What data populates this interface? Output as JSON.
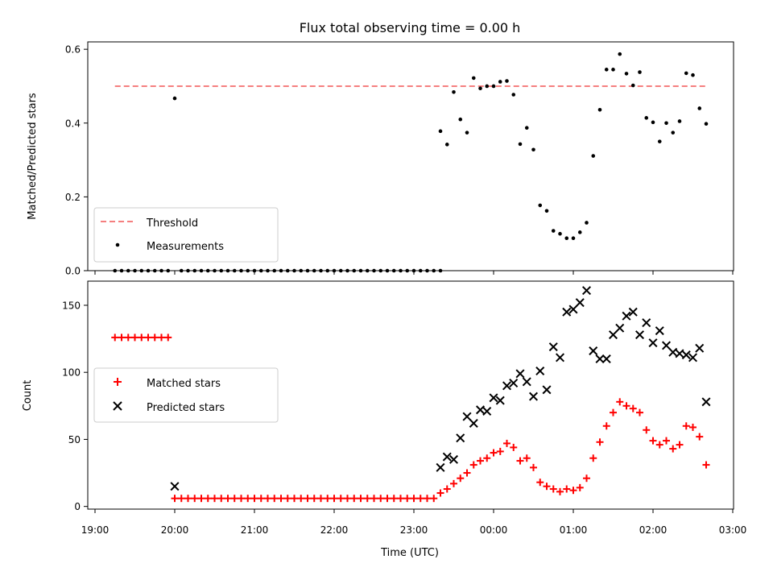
{
  "chart_data": {
    "title": "Flux total observing time = 0.00 h",
    "xlabel": "Time (UTC)",
    "x_ticks": [
      "19:00",
      "20:00",
      "21:00",
      "22:00",
      "23:00",
      "00:00",
      "01:00",
      "02:00",
      "03:00"
    ],
    "colors": {
      "threshold": "#f57f7f",
      "measurements": "#000000",
      "matched": "#ff0000",
      "predicted": "#000000"
    },
    "panels": [
      {
        "type": "scatter",
        "ylabel": "Matched/Predicted stars",
        "ylim": [
          0,
          0.62
        ],
        "y_ticks": [
          "0.0",
          "0.2",
          "0.4",
          "0.6"
        ],
        "legend_position": "lower-left",
        "threshold": {
          "name": "Threshold",
          "value": 0.5,
          "x_start": "19:15",
          "x_end": "02:40"
        },
        "series": [
          {
            "name": "Measurements",
            "marker": "dot",
            "points": [
              [
                "19:15",
                0
              ],
              [
                "19:20",
                0
              ],
              [
                "19:25",
                0
              ],
              [
                "19:30",
                0
              ],
              [
                "19:35",
                0
              ],
              [
                "19:40",
                0
              ],
              [
                "19:45",
                0
              ],
              [
                "19:50",
                0
              ],
              [
                "19:55",
                0
              ],
              [
                "20:00",
                0.467
              ],
              [
                "20:05",
                0
              ],
              [
                "20:10",
                0
              ],
              [
                "20:15",
                0
              ],
              [
                "20:20",
                0
              ],
              [
                "20:25",
                0
              ],
              [
                "20:30",
                0
              ],
              [
                "20:35",
                0
              ],
              [
                "20:40",
                0
              ],
              [
                "20:45",
                0
              ],
              [
                "20:50",
                0
              ],
              [
                "20:55",
                0
              ],
              [
                "21:00",
                0
              ],
              [
                "21:05",
                0
              ],
              [
                "21:10",
                0
              ],
              [
                "21:15",
                0
              ],
              [
                "21:20",
                0
              ],
              [
                "21:25",
                0
              ],
              [
                "21:30",
                0
              ],
              [
                "21:35",
                0
              ],
              [
                "21:40",
                0
              ],
              [
                "21:45",
                0
              ],
              [
                "21:50",
                0
              ],
              [
                "21:55",
                0
              ],
              [
                "22:00",
                0
              ],
              [
                "22:05",
                0
              ],
              [
                "22:10",
                0
              ],
              [
                "22:15",
                0
              ],
              [
                "22:20",
                0
              ],
              [
                "22:25",
                0
              ],
              [
                "22:30",
                0
              ],
              [
                "22:35",
                0
              ],
              [
                "22:40",
                0
              ],
              [
                "22:45",
                0
              ],
              [
                "22:50",
                0
              ],
              [
                "22:55",
                0
              ],
              [
                "23:00",
                0
              ],
              [
                "23:05",
                0
              ],
              [
                "23:10",
                0
              ],
              [
                "23:15",
                0
              ],
              [
                "23:20",
                0
              ],
              [
                "23:20",
                0.378
              ],
              [
                "23:25",
                0.342
              ],
              [
                "23:30",
                0.484
              ],
              [
                "23:35",
                0.41
              ],
              [
                "23:40",
                0.374
              ],
              [
                "23:45",
                0.522
              ],
              [
                "23:50",
                0.494
              ],
              [
                "23:55",
                0.5
              ],
              [
                "00:00",
                0.5
              ],
              [
                "00:05",
                0.512
              ],
              [
                "00:10",
                0.514
              ],
              [
                "00:15",
                0.477
              ],
              [
                "00:20",
                0.343
              ],
              [
                "00:25",
                0.387
              ],
              [
                "00:30",
                0.328
              ],
              [
                "00:35",
                0.177
              ],
              [
                "00:40",
                0.162
              ],
              [
                "00:45",
                0.108
              ],
              [
                "00:50",
                0.1
              ],
              [
                "00:55",
                0.088
              ],
              [
                "01:00",
                0.088
              ],
              [
                "01:05",
                0.104
              ],
              [
                "01:10",
                0.13
              ],
              [
                "01:15",
                0.311
              ],
              [
                "01:20",
                0.436
              ],
              [
                "01:25",
                0.545
              ],
              [
                "01:30",
                0.545
              ],
              [
                "01:35",
                0.587
              ],
              [
                "01:40",
                0.534
              ],
              [
                "01:45",
                0.502
              ],
              [
                "01:50",
                0.538
              ],
              [
                "01:55",
                0.414
              ],
              [
                "02:00",
                0.402
              ],
              [
                "02:05",
                0.35
              ],
              [
                "02:10",
                0.4
              ],
              [
                "02:15",
                0.374
              ],
              [
                "02:20",
                0.405
              ],
              [
                "02:25",
                0.535
              ],
              [
                "02:30",
                0.53
              ],
              [
                "02:35",
                0.44
              ],
              [
                "02:40",
                0.398
              ]
            ]
          }
        ]
      },
      {
        "type": "scatter",
        "ylabel": "Count",
        "ylim": [
          -2,
          168
        ],
        "y_ticks": [
          "0",
          "50",
          "100",
          "150"
        ],
        "legend_position": "center-left",
        "series": [
          {
            "name": "Matched stars",
            "marker": "plus",
            "points": [
              [
                "19:15",
                126
              ],
              [
                "19:20",
                126
              ],
              [
                "19:25",
                126
              ],
              [
                "19:30",
                126
              ],
              [
                "19:35",
                126
              ],
              [
                "19:40",
                126
              ],
              [
                "19:45",
                126
              ],
              [
                "19:50",
                126
              ],
              [
                "19:55",
                126
              ],
              [
                "20:00",
                6
              ],
              [
                "20:05",
                6
              ],
              [
                "20:10",
                6
              ],
              [
                "20:15",
                6
              ],
              [
                "20:20",
                6
              ],
              [
                "20:25",
                6
              ],
              [
                "20:30",
                6
              ],
              [
                "20:35",
                6
              ],
              [
                "20:40",
                6
              ],
              [
                "20:45",
                6
              ],
              [
                "20:50",
                6
              ],
              [
                "20:55",
                6
              ],
              [
                "21:00",
                6
              ],
              [
                "21:05",
                6
              ],
              [
                "21:10",
                6
              ],
              [
                "21:15",
                6
              ],
              [
                "21:20",
                6
              ],
              [
                "21:25",
                6
              ],
              [
                "21:30",
                6
              ],
              [
                "21:35",
                6
              ],
              [
                "21:40",
                6
              ],
              [
                "21:45",
                6
              ],
              [
                "21:50",
                6
              ],
              [
                "21:55",
                6
              ],
              [
                "22:00",
                6
              ],
              [
                "22:05",
                6
              ],
              [
                "22:10",
                6
              ],
              [
                "22:15",
                6
              ],
              [
                "22:20",
                6
              ],
              [
                "22:25",
                6
              ],
              [
                "22:30",
                6
              ],
              [
                "22:35",
                6
              ],
              [
                "22:40",
                6
              ],
              [
                "22:45",
                6
              ],
              [
                "22:50",
                6
              ],
              [
                "22:55",
                6
              ],
              [
                "23:00",
                6
              ],
              [
                "23:05",
                6
              ],
              [
                "23:10",
                6
              ],
              [
                "23:15",
                6
              ],
              [
                "23:20",
                10
              ],
              [
                "23:25",
                13
              ],
              [
                "23:30",
                17
              ],
              [
                "23:35",
                21
              ],
              [
                "23:40",
                25
              ],
              [
                "23:45",
                31
              ],
              [
                "23:50",
                34
              ],
              [
                "23:55",
                36
              ],
              [
                "00:00",
                40
              ],
              [
                "00:05",
                41
              ],
              [
                "00:10",
                47
              ],
              [
                "00:15",
                44
              ],
              [
                "00:20",
                34
              ],
              [
                "00:25",
                36
              ],
              [
                "00:30",
                29
              ],
              [
                "00:35",
                18
              ],
              [
                "00:40",
                15
              ],
              [
                "00:45",
                13
              ],
              [
                "00:50",
                11
              ],
              [
                "00:55",
                13
              ],
              [
                "01:00",
                12
              ],
              [
                "01:05",
                14
              ],
              [
                "01:10",
                21
              ],
              [
                "01:15",
                36
              ],
              [
                "01:20",
                48
              ],
              [
                "01:25",
                60
              ],
              [
                "01:30",
                70
              ],
              [
                "01:35",
                78
              ],
              [
                "01:40",
                75
              ],
              [
                "01:45",
                73
              ],
              [
                "01:50",
                70
              ],
              [
                "01:55",
                57
              ],
              [
                "02:00",
                49
              ],
              [
                "02:05",
                46
              ],
              [
                "02:10",
                49
              ],
              [
                "02:15",
                43
              ],
              [
                "02:20",
                46
              ],
              [
                "02:25",
                60
              ],
              [
                "02:30",
                59
              ],
              [
                "02:35",
                52
              ],
              [
                "02:40",
                31
              ]
            ]
          },
          {
            "name": "Predicted stars",
            "marker": "x",
            "points": [
              [
                "20:00",
                15
              ],
              [
                "23:20",
                29
              ],
              [
                "23:25",
                37
              ],
              [
                "23:30",
                35
              ],
              [
                "23:35",
                51
              ],
              [
                "23:40",
                67
              ],
              [
                "23:45",
                62
              ],
              [
                "23:50",
                72
              ],
              [
                "23:55",
                71
              ],
              [
                "00:00",
                81
              ],
              [
                "00:05",
                79
              ],
              [
                "00:10",
                90
              ],
              [
                "00:15",
                92
              ],
              [
                "00:20",
                99
              ],
              [
                "00:25",
                93
              ],
              [
                "00:30",
                82
              ],
              [
                "00:35",
                101
              ],
              [
                "00:40",
                87
              ],
              [
                "00:45",
                119
              ],
              [
                "00:50",
                111
              ],
              [
                "00:55",
                145
              ],
              [
                "01:00",
                147
              ],
              [
                "01:05",
                152
              ],
              [
                "01:10",
                161
              ],
              [
                "01:15",
                116
              ],
              [
                "01:20",
                110
              ],
              [
                "01:25",
                110
              ],
              [
                "01:30",
                128
              ],
              [
                "01:35",
                133
              ],
              [
                "01:40",
                142
              ],
              [
                "01:45",
                145
              ],
              [
                "01:50",
                128
              ],
              [
                "01:55",
                137
              ],
              [
                "02:00",
                122
              ],
              [
                "02:05",
                131
              ],
              [
                "02:10",
                120
              ],
              [
                "02:15",
                115
              ],
              [
                "02:20",
                114
              ],
              [
                "02:25",
                113
              ],
              [
                "02:30",
                111
              ],
              [
                "02:35",
                118
              ],
              [
                "02:40",
                78
              ]
            ]
          }
        ]
      }
    ]
  }
}
